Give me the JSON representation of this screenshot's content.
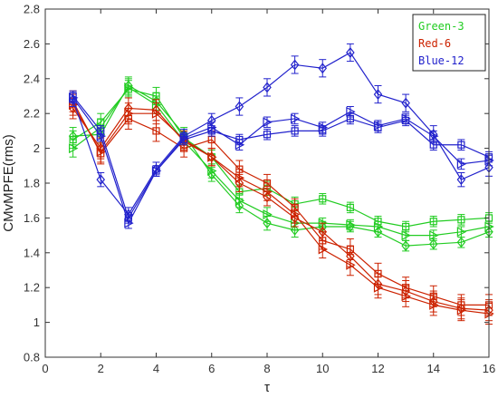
{
  "chart_data": {
    "type": "line",
    "xlabel": "τ",
    "ylabel": "CMvMPFE(rms)",
    "xlim": [
      0,
      16
    ],
    "ylim": [
      0.8,
      2.8
    ],
    "xticks": [
      "0",
      "2",
      "4",
      "6",
      "8",
      "10",
      "12",
      "14",
      "16"
    ],
    "yticks": [
      "0.8",
      "1",
      "1.2",
      "1.4",
      "1.6",
      "1.8",
      "2",
      "2.2",
      "2.4",
      "2.6",
      "2.8"
    ],
    "grid": false,
    "legend_position": "top-right",
    "legend": [
      {
        "label": "Green-3",
        "color": "#22cc22"
      },
      {
        "label": "Red-6",
        "color": "#cc2200"
      },
      {
        "label": "Blue-12",
        "color": "#2222cc"
      }
    ],
    "x": [
      1,
      2,
      3,
      4,
      5,
      6,
      7,
      8,
      9,
      10,
      11,
      12,
      13,
      14,
      15,
      16
    ],
    "series": [
      {
        "group": "Green-3",
        "marker": "square",
        "color": "#22cc22",
        "values": [
          2.05,
          2.15,
          2.34,
          2.3,
          2.06,
          1.95,
          1.75,
          1.77,
          1.68,
          1.71,
          1.66,
          1.58,
          1.55,
          1.58,
          1.59,
          1.6
        ],
        "error": [
          0.05,
          0.05,
          0.05,
          0.05,
          0.04,
          0.04,
          0.04,
          0.04,
          0.04,
          0.03,
          0.03,
          0.03,
          0.03,
          0.03,
          0.03,
          0.03
        ]
      },
      {
        "group": "Green-3",
        "marker": "triangle-right",
        "color": "#22cc22",
        "values": [
          2.0,
          2.12,
          2.35,
          2.25,
          2.04,
          1.87,
          1.7,
          1.62,
          1.57,
          1.57,
          1.56,
          1.55,
          1.5,
          1.5,
          1.52,
          1.55
        ],
        "error": [
          0.05,
          0.05,
          0.05,
          0.05,
          0.04,
          0.04,
          0.04,
          0.04,
          0.04,
          0.03,
          0.03,
          0.03,
          0.03,
          0.03,
          0.03,
          0.03
        ]
      },
      {
        "group": "Green-3",
        "marker": "diamond",
        "color": "#22cc22",
        "values": [
          2.07,
          2.08,
          2.36,
          2.27,
          2.08,
          1.85,
          1.67,
          1.57,
          1.53,
          1.55,
          1.55,
          1.52,
          1.44,
          1.45,
          1.46,
          1.52
        ],
        "error": [
          0.05,
          0.05,
          0.05,
          0.05,
          0.04,
          0.04,
          0.04,
          0.04,
          0.04,
          0.03,
          0.03,
          0.03,
          0.03,
          0.03,
          0.03,
          0.03
        ]
      },
      {
        "group": "Red-6",
        "marker": "square",
        "color": "#cc2200",
        "values": [
          2.27,
          1.97,
          2.17,
          2.1,
          2.0,
          2.05,
          1.88,
          1.8,
          1.66,
          1.47,
          1.42,
          1.28,
          1.2,
          1.15,
          1.1,
          1.1
        ],
        "error": [
          0.06,
          0.06,
          0.06,
          0.06,
          0.05,
          0.05,
          0.05,
          0.05,
          0.05,
          0.05,
          0.06,
          0.06,
          0.06,
          0.06,
          0.06,
          0.06
        ]
      },
      {
        "group": "Red-6",
        "marker": "triangle-right",
        "color": "#cc2200",
        "values": [
          2.25,
          1.98,
          2.2,
          2.2,
          2.05,
          1.95,
          1.83,
          1.75,
          1.62,
          1.42,
          1.33,
          1.2,
          1.15,
          1.1,
          1.07,
          1.05
        ],
        "error": [
          0.06,
          0.06,
          0.06,
          0.06,
          0.05,
          0.05,
          0.05,
          0.05,
          0.05,
          0.05,
          0.06,
          0.06,
          0.06,
          0.06,
          0.06,
          0.06
        ]
      },
      {
        "group": "Red-6",
        "marker": "diamond",
        "color": "#cc2200",
        "values": [
          2.23,
          2.0,
          2.23,
          2.22,
          2.04,
          1.95,
          1.8,
          1.72,
          1.6,
          1.52,
          1.38,
          1.22,
          1.18,
          1.12,
          1.08,
          1.07
        ],
        "error": [
          0.06,
          0.06,
          0.06,
          0.06,
          0.05,
          0.05,
          0.05,
          0.05,
          0.05,
          0.05,
          0.06,
          0.06,
          0.06,
          0.06,
          0.06,
          0.06
        ]
      },
      {
        "group": "Blue-12",
        "marker": "square",
        "color": "#2222cc",
        "values": [
          2.3,
          2.1,
          1.6,
          1.87,
          2.05,
          2.1,
          2.05,
          2.08,
          2.1,
          2.1,
          2.17,
          2.12,
          2.16,
          2.02,
          2.02,
          1.95
        ],
        "error": [
          0.03,
          0.03,
          0.03,
          0.03,
          0.03,
          0.03,
          0.03,
          0.03,
          0.03,
          0.03,
          0.03,
          0.03,
          0.03,
          0.03,
          0.03,
          0.03
        ]
      },
      {
        "group": "Blue-12",
        "marker": "triangle-right",
        "color": "#2222cc",
        "values": [
          2.29,
          2.07,
          1.57,
          1.87,
          2.06,
          2.12,
          2.02,
          2.15,
          2.17,
          2.12,
          2.21,
          2.13,
          2.17,
          2.07,
          1.91,
          1.93
        ],
        "error": [
          0.03,
          0.03,
          0.03,
          0.03,
          0.03,
          0.03,
          0.03,
          0.03,
          0.03,
          0.03,
          0.03,
          0.03,
          0.03,
          0.03,
          0.03,
          0.03
        ]
      },
      {
        "group": "Blue-12",
        "marker": "diamond",
        "color": "#2222cc",
        "values": [
          2.28,
          1.82,
          1.62,
          1.88,
          2.07,
          2.16,
          2.24,
          2.35,
          2.48,
          2.46,
          2.55,
          2.31,
          2.26,
          2.08,
          1.82,
          1.89
        ],
        "error": [
          0.04,
          0.04,
          0.04,
          0.04,
          0.04,
          0.04,
          0.05,
          0.05,
          0.05,
          0.05,
          0.05,
          0.05,
          0.05,
          0.05,
          0.04,
          0.05
        ]
      }
    ]
  }
}
